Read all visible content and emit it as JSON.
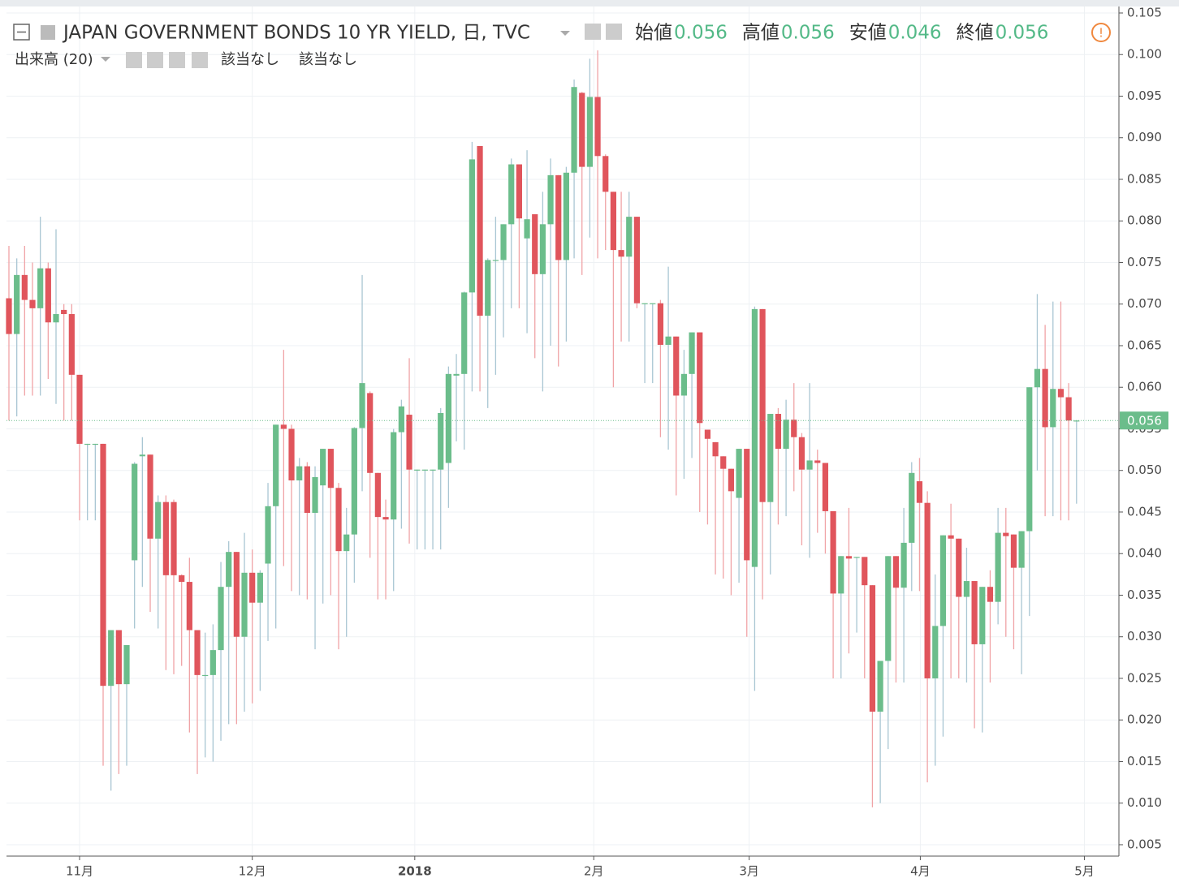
{
  "chart_data": {
    "type": "candlestick",
    "title": "JAPAN GOVERNMENT BONDS 10 YR YIELD, 日, TVC",
    "ohlc_legend": [
      {
        "label": "始値",
        "value": 0.056
      },
      {
        "label": "高値",
        "value": 0.056
      },
      {
        "label": "安値",
        "value": 0.046
      },
      {
        "label": "終値",
        "value": 0.056
      }
    ],
    "volume_label": "出来高 (20)",
    "volume_values": [
      "該当なし",
      "該当なし"
    ],
    "up_color": "#6bbd8b",
    "down_color": "#e0555c",
    "last_price": 0.056,
    "grid": true,
    "xlim": [
      -0.31,
      141.4
    ],
    "xticks": [
      {
        "value": 9,
        "label": "11月"
      },
      {
        "value": 31,
        "label": "12月"
      },
      {
        "value": 51.7,
        "label": "2018"
      },
      {
        "value": 74.5,
        "label": "2月"
      },
      {
        "value": 94.3,
        "label": "3月"
      },
      {
        "value": 116.1,
        "label": "4月"
      },
      {
        "value": 137,
        "label": "5月"
      }
    ],
    "ylim": [
      0.00363,
      0.10578
    ],
    "yticks": [
      0.005,
      {
        "value": 0.01,
        "label": "0.010"
      },
      0.015,
      {
        "value": 0.02,
        "label": "0.020"
      },
      0.025,
      {
        "value": 0.03,
        "label": "0.030"
      },
      0.035,
      {
        "value": 0.04,
        "label": "0.040"
      },
      0.045,
      {
        "value": 0.05,
        "label": "0.050"
      },
      0.055,
      {
        "value": 0.06,
        "label": "0.060"
      },
      0.065,
      {
        "value": 0.07,
        "label": "0.070"
      },
      0.075,
      {
        "value": 0.08,
        "label": "0.080"
      },
      0.085,
      {
        "value": 0.09,
        "label": "0.090"
      },
      0.095,
      {
        "value": 0.1,
        "label": "0.100"
      },
      0.105
    ],
    "open": [
      0.0707,
      0.0664,
      0.0735,
      0.0705,
      0.0695,
      0.0743,
      0.0678,
      0.0693,
      0.0688,
      0.0615,
      0.0532,
      0.0532,
      0.0532,
      0.0241,
      0.0308,
      0.0243,
      0.0392,
      0.0517,
      0.0519,
      0.0418,
      0.0462,
      0.0462,
      0.0374,
      0.0366,
      0.0308,
      0.0254,
      0.0254,
      0.0284,
      0.036,
      0.0402,
      0.03,
      0.0377,
      0.0341,
      0.0388,
      0.0457,
      0.0555,
      0.055,
      0.0488,
      0.0505,
      0.0449,
      0.0482,
      0.0526,
      0.0479,
      0.0403,
      0.0423,
      0.0551,
      0.0593,
      0.0497,
      0.0444,
      0.0441,
      0.0546,
      0.0567,
      0.0501,
      0.0501,
      0.0501,
      0.0501,
      0.0509,
      0.0614,
      0.0616,
      0.0714,
      0.089,
      0.0686,
      0.0753,
      0.0753,
      0.0796,
      0.0868,
      0.0779,
      0.0808,
      0.0736,
      0.0796,
      0.0855,
      0.0753,
      0.0858,
      0.0954,
      0.0865,
      0.0949,
      0.0878,
      0.0835,
      0.0765,
      0.0757,
      0.0805,
      0.0701,
      0.0701,
      0.0701,
      0.0651,
      0.0661,
      0.059,
      0.0616,
      0.0666,
      0.0549,
      0.0534,
      0.0517,
      0.0502,
      0.0467,
      0.0526,
      0.0384,
      0.0694,
      0.0462,
      0.0568,
      0.0526,
      0.0561,
      0.054,
      0.0501,
      0.0512,
      0.0509,
      0.0451,
      0.0352,
      0.0397,
      0.0396,
      0.0396,
      0.0362,
      0.021,
      0.0271,
      0.0397,
      0.0359,
      0.0413,
      0.0487,
      0.0461,
      0.025,
      0.0313,
      0.0422,
      0.0418,
      0.0348,
      0.0367,
      0.0291,
      0.036,
      0.0342,
      0.0425,
      0.0423,
      0.0383,
      0.0427,
      0.06,
      0.0622,
      0.0552,
      0.0598,
      0.0588,
      0.056
    ],
    "high": [
      0.077,
      0.0755,
      0.077,
      0.075,
      0.0805,
      0.075,
      0.079,
      0.07,
      0.07,
      0.0615,
      0.0532,
      0.0532,
      0.0532,
      0.0308,
      0.0308,
      0.029,
      0.051,
      0.054,
      0.0519,
      0.047,
      0.047,
      0.0465,
      0.0375,
      0.0395,
      0.0308,
      0.0305,
      0.0315,
      0.039,
      0.0415,
      0.0402,
      0.0425,
      0.0405,
      0.038,
      0.0485,
      0.0555,
      0.0645,
      0.0555,
      0.0515,
      0.051,
      0.0505,
      0.0526,
      0.0526,
      0.0485,
      0.0455,
      0.0552,
      0.0735,
      0.0595,
      0.0497,
      0.0465,
      0.055,
      0.0585,
      0.0635,
      0.0501,
      0.0501,
      0.0501,
      0.0575,
      0.0625,
      0.064,
      0.0715,
      0.0895,
      0.089,
      0.0755,
      0.0805,
      0.0796,
      0.0875,
      0.0868,
      0.0885,
      0.0808,
      0.0835,
      0.0875,
      0.0855,
      0.0865,
      0.097,
      0.0955,
      0.0995,
      0.1005,
      0.088,
      0.0835,
      0.0835,
      0.0835,
      0.0805,
      0.0701,
      0.0701,
      0.0705,
      0.0745,
      0.0661,
      0.0645,
      0.0666,
      0.0666,
      0.0549,
      0.0534,
      0.0517,
      0.0502,
      0.0526,
      0.0526,
      0.0697,
      0.0694,
      0.0568,
      0.0575,
      0.0585,
      0.0605,
      0.0545,
      0.0605,
      0.0525,
      0.0509,
      0.0451,
      0.0397,
      0.0455,
      0.0396,
      0.0396,
      0.0362,
      0.0271,
      0.0397,
      0.0397,
      0.0455,
      0.051,
      0.0515,
      0.0475,
      0.0375,
      0.0422,
      0.046,
      0.0418,
      0.0407,
      0.0367,
      0.036,
      0.038,
      0.0455,
      0.0455,
      0.0423,
      0.0427,
      0.06,
      0.0712,
      0.0675,
      0.0703,
      0.0703,
      0.0605,
      0.056
    ],
    "low": [
      0.056,
      0.0565,
      0.059,
      0.059,
      0.059,
      0.061,
      0.058,
      0.056,
      0.056,
      0.044,
      0.044,
      0.044,
      0.0145,
      0.0115,
      0.0135,
      0.0145,
      0.031,
      0.036,
      0.033,
      0.031,
      0.026,
      0.0255,
      0.0265,
      0.0185,
      0.0135,
      0.0155,
      0.015,
      0.0175,
      0.0195,
      0.0195,
      0.021,
      0.022,
      0.0235,
      0.0295,
      0.031,
      0.0385,
      0.0355,
      0.035,
      0.0345,
      0.0285,
      0.034,
      0.035,
      0.0285,
      0.03,
      0.0365,
      0.0475,
      0.0395,
      0.0345,
      0.0345,
      0.0355,
      0.043,
      0.0412,
      0.0405,
      0.0405,
      0.0405,
      0.0405,
      0.0455,
      0.0535,
      0.0525,
      0.0595,
      0.0595,
      0.0575,
      0.0615,
      0.066,
      0.0695,
      0.0695,
      0.0665,
      0.0635,
      0.0595,
      0.065,
      0.0625,
      0.0655,
      0.0755,
      0.0735,
      0.078,
      0.0755,
      0.0765,
      0.06,
      0.0655,
      0.0655,
      0.0695,
      0.0605,
      0.0605,
      0.054,
      0.0525,
      0.047,
      0.049,
      0.0515,
      0.045,
      0.0435,
      0.0375,
      0.037,
      0.035,
      0.0365,
      0.03,
      0.0235,
      0.0345,
      0.0375,
      0.0435,
      0.0445,
      0.0475,
      0.041,
      0.0395,
      0.0425,
      0.04,
      0.025,
      0.025,
      0.028,
      0.0305,
      0.025,
      0.0095,
      0.01,
      0.0165,
      0.0245,
      0.0245,
      0.0355,
      0.0355,
      0.0125,
      0.0145,
      0.018,
      0.025,
      0.025,
      0.0245,
      0.019,
      0.0185,
      0.0245,
      0.0315,
      0.03,
      0.0285,
      0.0255,
      0.0325,
      0.05,
      0.0445,
      0.0445,
      0.044,
      0.044,
      0.046
    ],
    "close": [
      0.0664,
      0.0735,
      0.0705,
      0.0695,
      0.0743,
      0.0678,
      0.0688,
      0.0688,
      0.0615,
      0.0532,
      0.0532,
      0.0532,
      0.0241,
      0.0308,
      0.0243,
      0.029,
      0.0508,
      0.0519,
      0.0418,
      0.0462,
      0.0374,
      0.0374,
      0.0366,
      0.0308,
      0.0254,
      0.0254,
      0.0284,
      0.036,
      0.0402,
      0.03,
      0.0377,
      0.0341,
      0.0377,
      0.0457,
      0.0555,
      0.055,
      0.0488,
      0.0505,
      0.0449,
      0.0492,
      0.0526,
      0.0479,
      0.0403,
      0.0423,
      0.0551,
      0.0605,
      0.0497,
      0.0444,
      0.0441,
      0.0546,
      0.0577,
      0.0501,
      0.0501,
      0.0501,
      0.0501,
      0.0569,
      0.0616,
      0.0616,
      0.0714,
      0.0874,
      0.0686,
      0.0753,
      0.0753,
      0.0796,
      0.0868,
      0.0803,
      0.0802,
      0.0736,
      0.0796,
      0.0855,
      0.0753,
      0.0858,
      0.0961,
      0.0865,
      0.0949,
      0.0878,
      0.0835,
      0.0765,
      0.0757,
      0.0805,
      0.0701,
      0.0701,
      0.0701,
      0.0651,
      0.0661,
      0.059,
      0.0616,
      0.0666,
      0.0557,
      0.0538,
      0.0517,
      0.0502,
      0.0475,
      0.0526,
      0.0392,
      0.0694,
      0.0462,
      0.0568,
      0.0526,
      0.0561,
      0.054,
      0.0501,
      0.0512,
      0.0509,
      0.0451,
      0.0352,
      0.0397,
      0.0394,
      0.0396,
      0.0362,
      0.021,
      0.0271,
      0.0397,
      0.0359,
      0.0413,
      0.0497,
      0.0461,
      0.025,
      0.0313,
      0.0422,
      0.0418,
      0.0348,
      0.0367,
      0.0291,
      0.036,
      0.0342,
      0.0425,
      0.0421,
      0.0383,
      0.0427,
      0.06,
      0.0622,
      0.0552,
      0.0598,
      0.0588,
      0.056,
      0.056
    ]
  }
}
